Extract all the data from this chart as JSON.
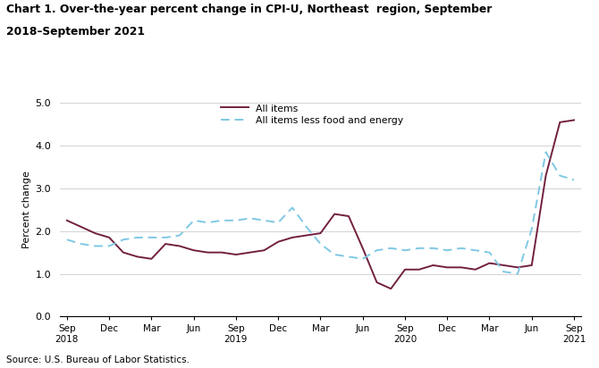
{
  "title_line1": "Chart 1. Over-the-year percent change in CPI-U, Northeast  region, September",
  "title_line2": "2018–September 2021",
  "ylabel": "Percent change",
  "source": "Source: U.S. Bureau of Labor Statistics.",
  "ylim": [
    0.0,
    5.0
  ],
  "yticks": [
    0.0,
    1.0,
    2.0,
    3.0,
    4.0,
    5.0
  ],
  "all_items_color": "#722040",
  "all_items_less_color": "#7ec8e3",
  "x_tick_labels": [
    "Sep\n2018",
    "Dec",
    "Mar",
    "Jun",
    "Sep\n2019",
    "Dec",
    "Mar",
    "Jun",
    "Sep\n2020",
    "Dec",
    "Mar",
    "Jun",
    "Sep\n2021"
  ],
  "x_tick_positions": [
    0,
    3,
    6,
    9,
    12,
    15,
    18,
    21,
    24,
    27,
    30,
    33,
    36
  ],
  "all_items_months": [
    0,
    1,
    2,
    3,
    4,
    5,
    6,
    7,
    8,
    9,
    10,
    11,
    12,
    13,
    14,
    15,
    16,
    17,
    18,
    19,
    20,
    21,
    22,
    23,
    24,
    25,
    26,
    27,
    28,
    29,
    30,
    31,
    32,
    33,
    34,
    35,
    36
  ],
  "all_items_vals": [
    2.25,
    2.1,
    1.95,
    1.85,
    1.5,
    1.4,
    1.35,
    1.7,
    1.65,
    1.55,
    1.5,
    1.5,
    1.45,
    1.5,
    1.55,
    1.75,
    1.85,
    1.9,
    1.95,
    2.4,
    2.35,
    1.6,
    0.8,
    0.65,
    1.1,
    1.1,
    1.2,
    1.15,
    1.15,
    1.1,
    1.25,
    1.2,
    1.15,
    1.2,
    3.3,
    4.55,
    4.6
  ],
  "all_items_less_months": [
    0,
    1,
    2,
    3,
    4,
    5,
    6,
    7,
    8,
    9,
    10,
    11,
    12,
    13,
    14,
    15,
    16,
    17,
    18,
    19,
    20,
    21,
    22,
    23,
    24,
    25,
    26,
    27,
    28,
    29,
    30,
    31,
    32,
    33,
    34,
    35,
    36
  ],
  "all_items_less_vals": [
    1.8,
    1.7,
    1.65,
    1.65,
    1.8,
    1.85,
    1.85,
    1.85,
    1.9,
    2.25,
    2.2,
    2.25,
    2.25,
    2.3,
    2.25,
    2.2,
    2.55,
    2.1,
    1.7,
    1.45,
    1.4,
    1.35,
    1.55,
    1.6,
    1.55,
    1.6,
    1.6,
    1.55,
    1.6,
    1.55,
    1.5,
    1.05,
    1.0,
    2.05,
    3.85,
    3.3,
    3.2
  ]
}
